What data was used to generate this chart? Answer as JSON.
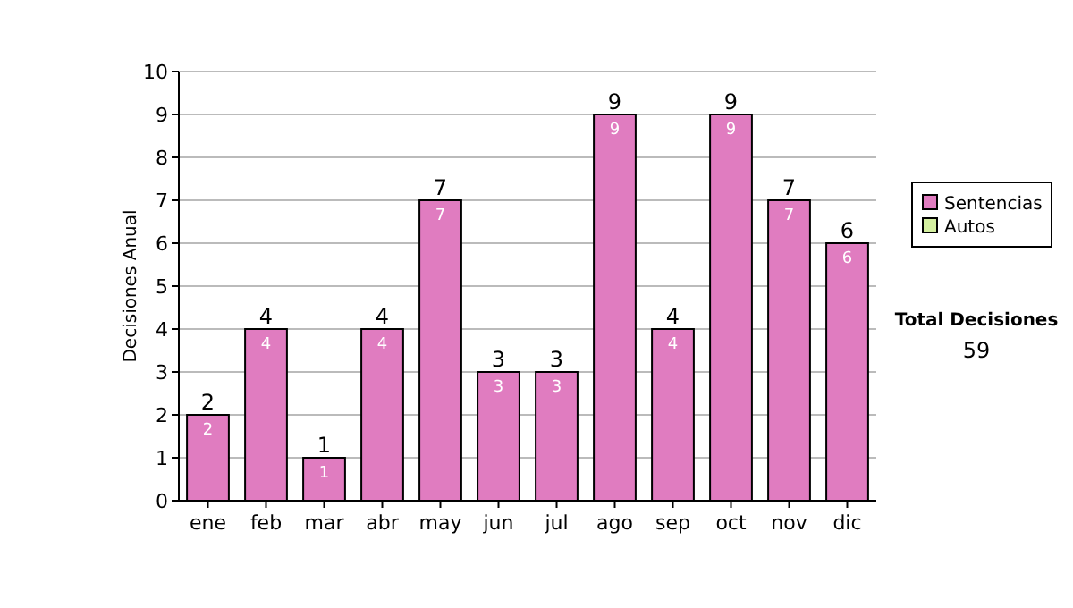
{
  "chart_data": {
    "type": "bar",
    "ylabel": "Decisiones Anual",
    "categories": [
      "ene",
      "feb",
      "mar",
      "abr",
      "may",
      "jun",
      "jul",
      "ago",
      "sep",
      "oct",
      "nov",
      "dic"
    ],
    "series": [
      {
        "name": "Sentencias",
        "color": "#e07cc0",
        "values": [
          2,
          4,
          1,
          4,
          7,
          3,
          3,
          9,
          4,
          9,
          7,
          6
        ],
        "value_labels": [
          "2",
          "4",
          "1",
          "4",
          "7",
          "3",
          "3",
          "9",
          "4",
          "9",
          "7",
          "6"
        ]
      },
      {
        "name": "Autos",
        "color": "#d4f0a0",
        "values": [
          0,
          0,
          0,
          0,
          0,
          0,
          0,
          0,
          0,
          0,
          0,
          0
        ]
      }
    ],
    "stacked": true,
    "totals": [
      "2",
      "4",
      "1",
      "4",
      "7",
      "3",
      "3",
      "9",
      "4",
      "9",
      "7",
      "6"
    ],
    "ylim": [
      0,
      10
    ],
    "yticks": [
      0,
      1,
      2,
      3,
      4,
      5,
      6,
      7,
      8,
      9,
      10
    ],
    "grid": "y",
    "legend": "right",
    "annotations": [
      "Total Decisiones",
      "59"
    ]
  }
}
